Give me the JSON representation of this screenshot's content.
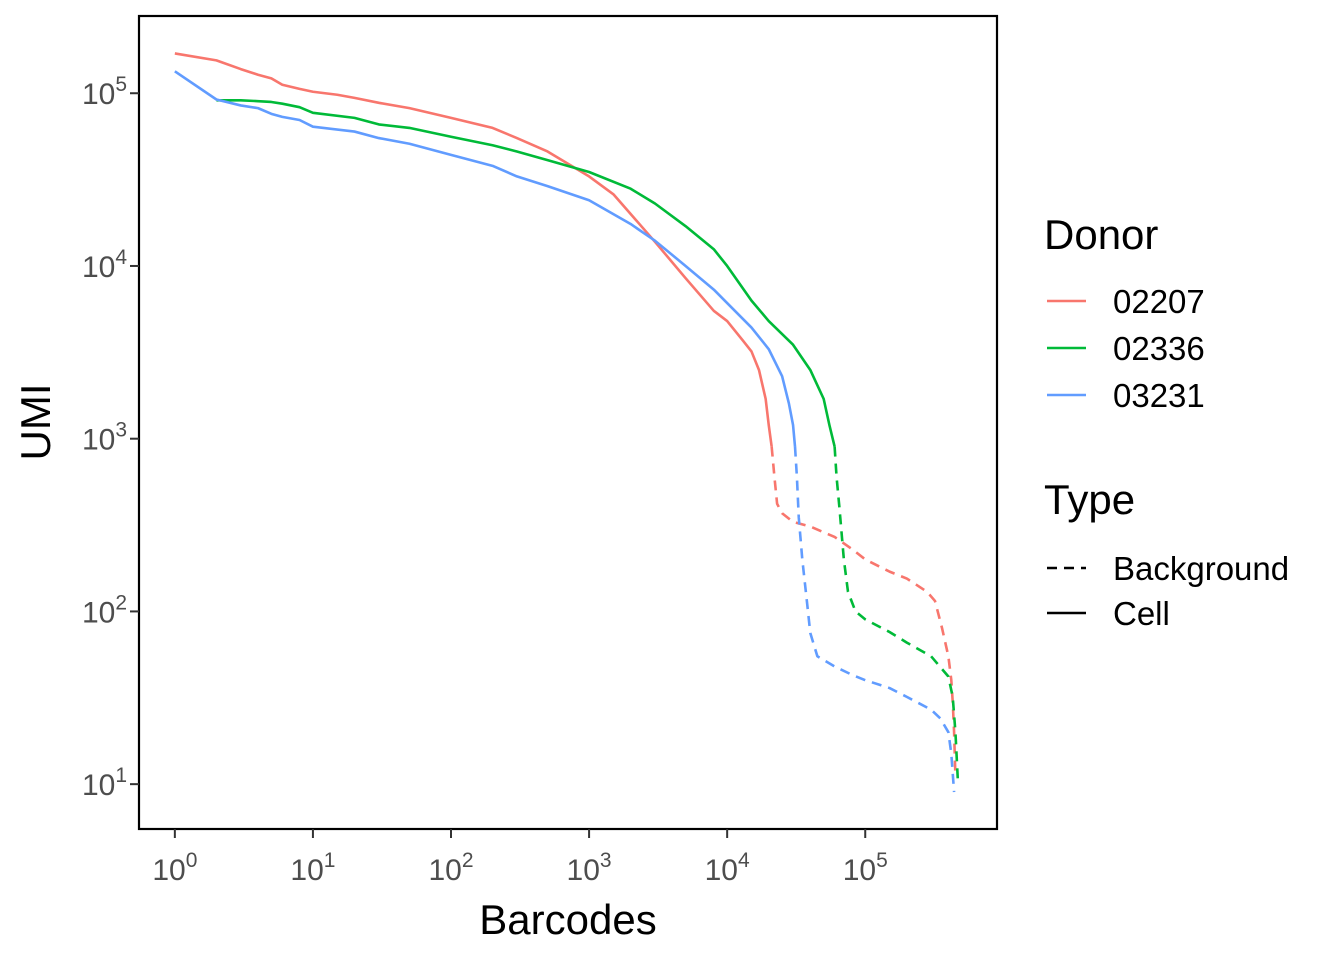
{
  "chart_data": {
    "type": "line",
    "title": "",
    "xlabel": "Barcodes",
    "ylabel": "UMI",
    "x_scale": "log10",
    "y_scale": "log10",
    "xlim": [
      0.55,
      900000
    ],
    "ylim": [
      5.5,
      280000
    ],
    "x_ticks": [
      {
        "value": 1,
        "base": "10",
        "exp": "0"
      },
      {
        "value": 10,
        "base": "10",
        "exp": "1"
      },
      {
        "value": 100,
        "base": "10",
        "exp": "2"
      },
      {
        "value": 1000,
        "base": "10",
        "exp": "3"
      },
      {
        "value": 10000,
        "base": "10",
        "exp": "4"
      },
      {
        "value": 100000,
        "base": "10",
        "exp": "5"
      }
    ],
    "y_ticks": [
      {
        "value": 10,
        "base": "10",
        "exp": "1"
      },
      {
        "value": 100,
        "base": "10",
        "exp": "2"
      },
      {
        "value": 1000,
        "base": "10",
        "exp": "3"
      },
      {
        "value": 10000,
        "base": "10",
        "exp": "4"
      },
      {
        "value": 100000,
        "base": "10",
        "exp": "5"
      }
    ],
    "grid": false,
    "legend_position": "right",
    "legends": [
      {
        "title": "Donor",
        "kind": "color",
        "entries": [
          {
            "label": "02207",
            "color": "#F8766D"
          },
          {
            "label": "02336",
            "color": "#00BA38"
          },
          {
            "label": "03231",
            "color": "#619CFF"
          }
        ]
      },
      {
        "title": "Type",
        "kind": "linetype",
        "entries": [
          {
            "label": "Background",
            "linetype": "dashed"
          },
          {
            "label": "Cell",
            "linetype": "solid"
          }
        ]
      }
    ],
    "series": [
      {
        "name": "02207",
        "type": "Cell",
        "color": "#F8766D",
        "linetype": "solid",
        "points": [
          [
            1,
            170000
          ],
          [
            2,
            155000
          ],
          [
            3,
            138000
          ],
          [
            4,
            128000
          ],
          [
            5,
            122000
          ],
          [
            6,
            112000
          ],
          [
            8,
            106000
          ],
          [
            10,
            102000
          ],
          [
            15,
            98000
          ],
          [
            20,
            94000
          ],
          [
            30,
            88000
          ],
          [
            50,
            82000
          ],
          [
            100,
            72000
          ],
          [
            200,
            63000
          ],
          [
            300,
            55000
          ],
          [
            500,
            46000
          ],
          [
            1000,
            33000
          ],
          [
            1500,
            26000
          ],
          [
            2000,
            20000
          ],
          [
            3000,
            13800
          ],
          [
            5000,
            8500
          ],
          [
            8000,
            5500
          ],
          [
            10000,
            4800
          ],
          [
            13000,
            3700
          ],
          [
            15000,
            3200
          ],
          [
            17000,
            2500
          ],
          [
            19000,
            1700
          ],
          [
            20000,
            1200
          ],
          [
            21000,
            900
          ]
        ]
      },
      {
        "name": "02207",
        "type": "Background",
        "color": "#F8766D",
        "linetype": "dashed",
        "points": [
          [
            21000,
            900
          ],
          [
            22000,
            600
          ],
          [
            23000,
            420
          ],
          [
            25000,
            370
          ],
          [
            30000,
            330
          ],
          [
            40000,
            310
          ],
          [
            60000,
            270
          ],
          [
            80000,
            230
          ],
          [
            100000,
            200
          ],
          [
            150000,
            170
          ],
          [
            200000,
            155
          ],
          [
            280000,
            130
          ],
          [
            320000,
            115
          ],
          [
            360000,
            80
          ],
          [
            400000,
            55
          ],
          [
            420000,
            40
          ],
          [
            430000,
            30
          ],
          [
            440000,
            20
          ],
          [
            450000,
            11
          ]
        ]
      },
      {
        "name": "02336",
        "type": "Cell",
        "color": "#00BA38",
        "linetype": "solid",
        "points": [
          [
            2,
            91000
          ],
          [
            3,
            91000
          ],
          [
            4,
            90000
          ],
          [
            5,
            89000
          ],
          [
            6,
            87000
          ],
          [
            8,
            83000
          ],
          [
            10,
            77000
          ],
          [
            20,
            72000
          ],
          [
            30,
            66000
          ],
          [
            50,
            63000
          ],
          [
            100,
            56000
          ],
          [
            200,
            50000
          ],
          [
            300,
            46000
          ],
          [
            500,
            41000
          ],
          [
            1000,
            35000
          ],
          [
            2000,
            28000
          ],
          [
            3000,
            23000
          ],
          [
            5000,
            17000
          ],
          [
            8000,
            12500
          ],
          [
            10000,
            10000
          ],
          [
            15000,
            6300
          ],
          [
            20000,
            4800
          ],
          [
            30000,
            3500
          ],
          [
            40000,
            2500
          ],
          [
            50000,
            1700
          ],
          [
            55000,
            1200
          ],
          [
            60000,
            900
          ]
        ]
      },
      {
        "name": "02336",
        "type": "Background",
        "color": "#00BA38",
        "linetype": "dashed",
        "points": [
          [
            60000,
            900
          ],
          [
            62000,
            600
          ],
          [
            65000,
            400
          ],
          [
            70000,
            200
          ],
          [
            75000,
            130
          ],
          [
            85000,
            100
          ],
          [
            100000,
            90
          ],
          [
            150000,
            76
          ],
          [
            200000,
            66
          ],
          [
            300000,
            55
          ],
          [
            400000,
            42
          ],
          [
            430000,
            32
          ],
          [
            450000,
            20
          ],
          [
            470000,
            10
          ]
        ]
      },
      {
        "name": "03231",
        "type": "Cell",
        "color": "#619CFF",
        "linetype": "solid",
        "points": [
          [
            1,
            134000
          ],
          [
            2,
            92000
          ],
          [
            3,
            85000
          ],
          [
            4,
            82000
          ],
          [
            5,
            76000
          ],
          [
            6,
            73000
          ],
          [
            8,
            70000
          ],
          [
            10,
            64000
          ],
          [
            20,
            60000
          ],
          [
            30,
            55000
          ],
          [
            50,
            51000
          ],
          [
            100,
            44000
          ],
          [
            200,
            38000
          ],
          [
            300,
            33000
          ],
          [
            500,
            29000
          ],
          [
            1000,
            24000
          ],
          [
            2000,
            17500
          ],
          [
            3000,
            14000
          ],
          [
            5000,
            10000
          ],
          [
            8000,
            7300
          ],
          [
            10000,
            6100
          ],
          [
            15000,
            4400
          ],
          [
            20000,
            3300
          ],
          [
            25000,
            2300
          ],
          [
            28000,
            1600
          ],
          [
            30000,
            1200
          ],
          [
            31000,
            900
          ]
        ]
      },
      {
        "name": "03231",
        "type": "Background",
        "color": "#619CFF",
        "linetype": "dashed",
        "points": [
          [
            31000,
            900
          ],
          [
            32000,
            600
          ],
          [
            33000,
            350
          ],
          [
            35000,
            200
          ],
          [
            38000,
            110
          ],
          [
            40000,
            75
          ],
          [
            45000,
            55
          ],
          [
            60000,
            48
          ],
          [
            80000,
            43
          ],
          [
            100000,
            40
          ],
          [
            150000,
            36
          ],
          [
            200000,
            32
          ],
          [
            300000,
            27
          ],
          [
            350000,
            24
          ],
          [
            400000,
            20
          ],
          [
            420000,
            15
          ],
          [
            440000,
            9
          ]
        ]
      }
    ]
  }
}
